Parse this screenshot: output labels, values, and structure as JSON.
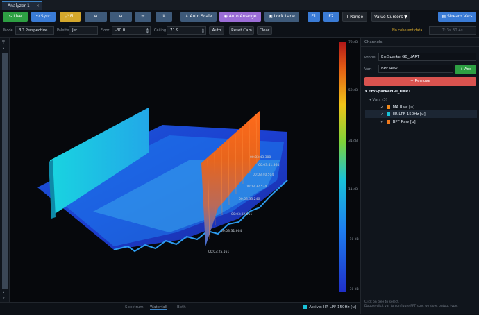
{
  "tab": {
    "title": "Analyzer 1",
    "close": "×"
  },
  "toolbar": {
    "live": "Live",
    "sync": "Sync",
    "fit": "Fit",
    "zoom_in": "⊕",
    "zoom_out": "⊖",
    "swap_h": "⇄",
    "swap_v": "⇅",
    "auto_scale": "Auto Scale",
    "auto_arrange": "Auto Arrange",
    "lock_lane": "Lock Lane",
    "f1": "F1",
    "f2": "F2",
    "t_range": "T-Range",
    "value_cursors": "Value Cursors ▼",
    "stream_vars": "Stream Vars"
  },
  "options": {
    "mode_label": "Mode",
    "mode_value": "3D Perspective",
    "palette_label": "Palette",
    "palette_value": "Jet",
    "floor_label": "Floor",
    "floor_value": "-30.0",
    "ceiling_label": "Ceiling",
    "ceiling_value": "71.9",
    "auto": "Auto",
    "reset_cam": "Reset Cam",
    "clear": "Clear",
    "coherent": "No coherent data",
    "time_readout": "T: 3s  30.4s"
  },
  "colorbar": {
    "labels": [
      "72 dB",
      "52 dB",
      "31 dB",
      "11 dB",
      "-10 dB",
      "-30 dB"
    ],
    "values": [
      72,
      52,
      31,
      11,
      -10,
      -30
    ]
  },
  "time_labels": [
    "00:03:43.388",
    "00:03:41.864",
    "00:03:40.504",
    "00:03:37.524",
    "00:03:33.246",
    "00:03:32.861",
    "00:03:31.664",
    "00:03:25.161"
  ],
  "bottom": {
    "tabs": [
      "Spectrum",
      "Waterfall",
      "Both"
    ],
    "active_tab": "Waterfall",
    "status": "Active: IIR LPF 150Hz [u]"
  },
  "panel": {
    "header": "Channels",
    "probe_label": "Probe:",
    "probe_value": "EmSparkerG0_UART",
    "var_label": "Var:",
    "var_value": "BPF Raw",
    "add": "+ Add",
    "remove": "− Remove",
    "tree_root": "EmSparkerG0_UART",
    "vars_group": "Vars (3)",
    "vars": [
      {
        "name": "MA Raw  [u]",
        "color": "#f08a1c"
      },
      {
        "name": "IIR LPF 150Hz  [u]",
        "color": "#19c2d8"
      },
      {
        "name": "BPF Raw  [u]",
        "color": "#f07a1c"
      }
    ],
    "hint1": "Click on tree to select.",
    "hint2": "Double-click var to configure FFT size, window, output type."
  },
  "icons": {
    "pin": "pin-icon",
    "collapse": "chevron-down-icon"
  }
}
